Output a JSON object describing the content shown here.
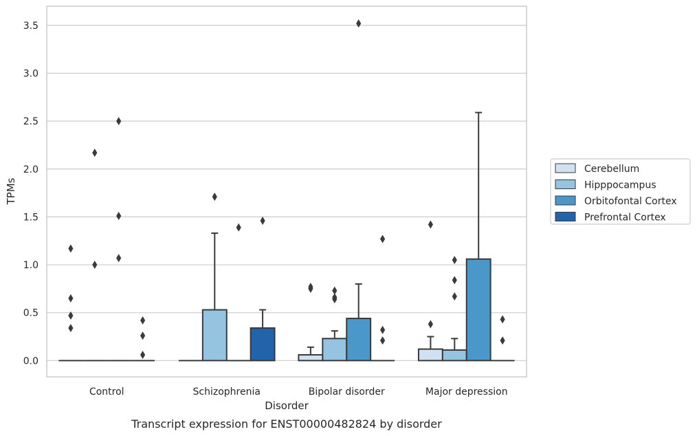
{
  "chart_data": {
    "type": "bar",
    "caption": "Transcript expression for ENST00000482824 by disorder",
    "xlabel": "Disorder",
    "ylabel": "TPMs",
    "ylim": [
      -0.17,
      3.7
    ],
    "yticks": [
      "0.0",
      "0.5",
      "1.0",
      "1.5",
      "2.0",
      "2.5",
      "3.0",
      "3.5"
    ],
    "grid": true,
    "legend_position": "right",
    "categories": [
      "Control",
      "Schizophrenia",
      "Bipolar disorder",
      "Major depression"
    ],
    "series": [
      {
        "name": "Cerebellum",
        "color": "#d0e1f2",
        "values": [
          0,
          0,
          0.06,
          0.12
        ],
        "error_upper": [
          null,
          null,
          0.14,
          0.25
        ],
        "outliers": [
          [
            0.34,
            0.47,
            0.65,
            1.17
          ],
          [],
          [
            0.75,
            0.77
          ],
          [
            0.38,
            1.42
          ]
        ]
      },
      {
        "name": "Hipppocampus",
        "color": "#94c4df",
        "values": [
          0,
          0.53,
          0.23,
          0.11
        ],
        "error_upper": [
          null,
          1.33,
          0.31,
          0.23
        ],
        "outliers": [
          [
            1.0,
            2.17
          ],
          [
            1.71
          ],
          [
            0.64,
            0.66,
            0.73
          ],
          [
            0.67,
            0.84,
            1.05
          ]
        ]
      },
      {
        "name": "Orbitofontal Cortex",
        "color": "#4a98c9",
        "values": [
          0,
          0,
          0.44,
          1.06
        ],
        "error_upper": [
          null,
          null,
          0.8,
          2.59
        ],
        "outliers": [
          [
            1.07,
            1.51,
            2.5
          ],
          [
            1.39
          ],
          [
            3.52
          ],
          []
        ]
      },
      {
        "name": "Prefrontal Cortex",
        "color": "#2164ab",
        "values": [
          0,
          0.34,
          0,
          0
        ],
        "error_upper": [
          null,
          0.53,
          null,
          null
        ],
        "outliers": [
          [
            0.06,
            0.26,
            0.42
          ],
          [
            1.46
          ],
          [
            0.21,
            0.32,
            1.27
          ],
          [
            0.21,
            0.43
          ]
        ]
      }
    ]
  }
}
